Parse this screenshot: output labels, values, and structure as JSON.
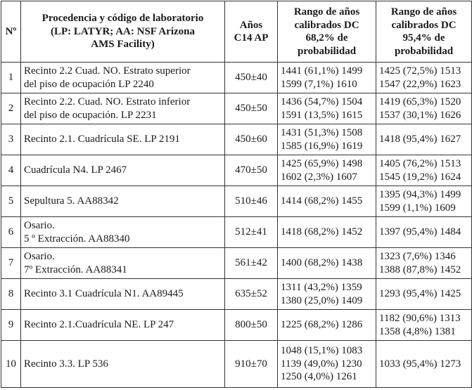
{
  "table": {
    "header": [
      "Nº",
      [
        "Procedencia y código de laboratorio",
        "(LP: LATYR; AA: NSF Arizona",
        "AMS Facility)"
      ],
      [
        "Años",
        "C14 AP"
      ],
      [
        "Rango de años",
        "calibrados DC",
        "68,2% de",
        "probabilidad"
      ],
      [
        "Rango de años",
        "calibrados DC",
        "95,4% de",
        "probabilidad"
      ]
    ],
    "rows": [
      [
        "1",
        [
          "Recinto 2.2 Cuad. NO. Estrato superior",
          "del piso de ocupación LP 2240"
        ],
        "450±40",
        [
          "1441 (61,1%) 1499",
          "1599 (7,1%) 1610"
        ],
        [
          "1425 (72,5%) 1513",
          "1547 (22,9%) 1623"
        ]
      ],
      [
        "2",
        [
          "Recinto 2.2. Cuad. NO. Estrato inferior",
          "del piso de ocupación. LP 2231"
        ],
        "450±50",
        [
          "1436 (54,7%) 1504",
          "1591 (13,5%) 1615"
        ],
        [
          "1419 (65,3%) 1520",
          "1537 (30,1%) 1626"
        ]
      ],
      [
        "3",
        [
          "Recinto 2.1. Cuadrícula SE. LP 2191"
        ],
        "450±60",
        [
          "1431 (51,3%) 1508",
          "1585 (16,9%) 1619"
        ],
        [
          "1418 (95,4%) 1627"
        ]
      ],
      [
        "4",
        [
          "Cuadrícula N4. LP 2467"
        ],
        "470±50",
        [
          "1425 (65,9%) 1498",
          "1602 (2,3%) 1607"
        ],
        [
          "1405 (76,2%) 1513",
          "1545 (19,2%) 1624"
        ]
      ],
      [
        "5",
        [
          "Sepultura 5. AA88342"
        ],
        "510±46",
        [
          "1414 (68,2%) 1455"
        ],
        [
          "1395 (94,3%) 1499",
          "1599 (1,1%) 1609"
        ]
      ],
      [
        "6",
        [
          "Osario.",
          "5 º Extracción. AA88340"
        ],
        "512±41",
        [
          "1418 (68,2%) 1452"
        ],
        [
          "1397 (95,4%) 1484"
        ]
      ],
      [
        "7",
        [
          "Osario.",
          "7º Extracción. AA88341"
        ],
        "561±42",
        [
          "1400 (68,2%) 1438"
        ],
        [
          "1323 (7,6%) 1346",
          "1388 (87,8%) 1452"
        ]
      ],
      [
        "8",
        [
          "Recinto 3.1 Cuadrícula N1. AA89445"
        ],
        "635±52",
        [
          "1311 (43,2%) 1359",
          "1380 (25,0%) 1409"
        ],
        [
          "1293 (95,4%) 1425"
        ]
      ],
      [
        "9",
        [
          "Recinto 2.1.Cuadrícula NE. LP 247"
        ],
        "800±50",
        [
          "1225 (68,2%) 1286"
        ],
        [
          "1182 (90,6%) 1313",
          "1358 (4,8%) 1381"
        ]
      ],
      [
        "10",
        [
          "Recinto 3.3. LP 536"
        ],
        "910±70",
        [
          "1048 (15,1%) 1083",
          "1139 (49,0%) 1230",
          "1250 (4,0%) 1261"
        ],
        [
          "1033 (95,4%) 1273"
        ]
      ]
    ]
  }
}
